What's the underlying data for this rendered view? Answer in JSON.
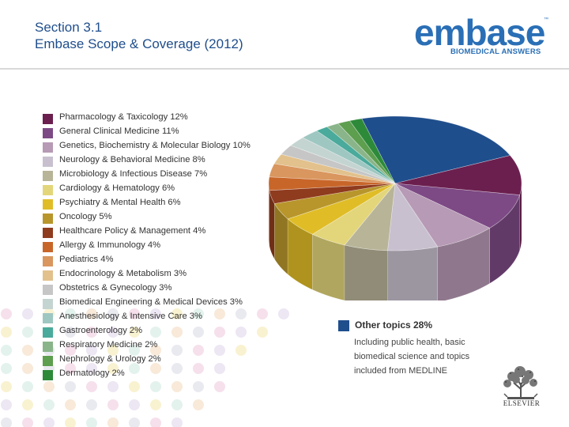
{
  "header": {
    "line1": "Section 3.1",
    "line2": "Embase Scope & Coverage (2012)"
  },
  "logo": {
    "word": "embase",
    "tagline": "BIOMEDICAL ANSWERS",
    "tm": "™",
    "color": "#2a6fb6"
  },
  "chart_data": {
    "type": "pie",
    "style": "3d",
    "title": "",
    "series": [
      {
        "label": "Pharmacology & Taxicology 12%",
        "value": 12,
        "color": "#6b1f4f"
      },
      {
        "label": "General Clinical Medicine 11%",
        "value": 11,
        "color": "#7d4a85"
      },
      {
        "label": "Genetics, Biochemistry & Molecular Biology 10%",
        "value": 10,
        "color": "#b79ab5"
      },
      {
        "label": "Neurology & Behavioral Medicine 8%",
        "value": 8,
        "color": "#c8c0cf"
      },
      {
        "label": "Microbiology & Infectious Disease 7%",
        "value": 7,
        "color": "#b8b498"
      },
      {
        "label": "Cardiology & Hematology 6%",
        "value": 6,
        "color": "#e3d57a"
      },
      {
        "label": "Psychiatry & Mental Health 6%",
        "value": 6,
        "color": "#e0bd27"
      },
      {
        "label": "Oncology 5%",
        "value": 5,
        "color": "#b8962c"
      },
      {
        "label": "Healthcare Policy & Management 4%",
        "value": 4,
        "color": "#8f3b1e"
      },
      {
        "label": "Allergy & Immunology 4%",
        "value": 4,
        "color": "#c8662a"
      },
      {
        "label": "Pediatrics 4%",
        "value": 4,
        "color": "#d9965e"
      },
      {
        "label": "Endocrinology & Metabolism 3%",
        "value": 3,
        "color": "#e2c18c"
      },
      {
        "label": "Obstetrics & Gynecology 3%",
        "value": 3,
        "color": "#c6c6c6"
      },
      {
        "label": "Biomedical Engineering & Medical Devices 3%",
        "value": 3,
        "color": "#c4d4d1"
      },
      {
        "label": "Anesthesiology & Intensive Care 3%",
        "value": 3,
        "color": "#9fc7c2"
      },
      {
        "label": "Gastroenterology 2%",
        "value": 2,
        "color": "#4aaa9b"
      },
      {
        "label": "Respiratory Medicine 2%",
        "value": 2,
        "color": "#8ab58a"
      },
      {
        "label": "Nephrology & Urology 2%",
        "value": 2,
        "color": "#5e9e4f"
      },
      {
        "label": "Dermatology 2%",
        "value": 2,
        "color": "#2d8a39"
      }
    ],
    "other": {
      "label": "Other topics 28%",
      "value": 28,
      "color": "#1f4e8c",
      "description": "Including public health, basic biomedical science and topics included from MEDLINE"
    }
  },
  "publisher": {
    "name": "ELSEVIER"
  }
}
